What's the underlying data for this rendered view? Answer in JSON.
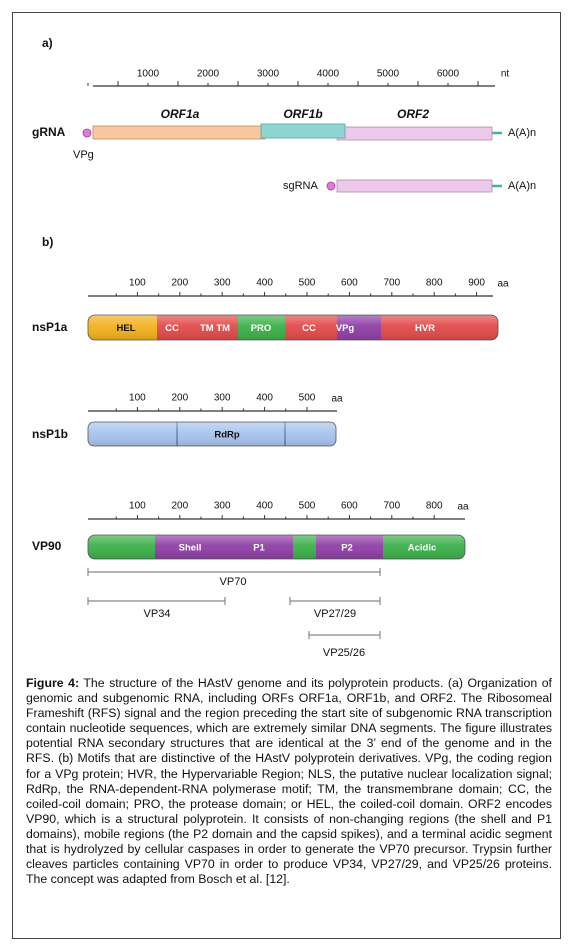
{
  "panel_a": {
    "label": "a)",
    "ruler_ticks": [
      "1000",
      "2000",
      "3000",
      "4000",
      "5000",
      "6000"
    ],
    "ruler_unit": "nt",
    "orf_labels": [
      "ORF1a",
      "ORF1b",
      "ORF2"
    ],
    "grna": {
      "label": "gRNA",
      "vpg": "VPg",
      "tail": "A(A)n"
    },
    "sgrna": {
      "label": "sgRNA",
      "tail": "A(A)n"
    }
  },
  "panel_b": {
    "label": "b)",
    "proteins": [
      {
        "name": "nsP1a",
        "ruler_ticks": [
          "100",
          "200",
          "300",
          "400",
          "500",
          "600",
          "700",
          "800",
          "900"
        ],
        "ruler_unit": "aa",
        "domains": [
          "HEL",
          "CC",
          "TM TM",
          "PRO",
          "CC",
          "VPg",
          "HVR"
        ]
      },
      {
        "name": "nsP1b",
        "ruler_ticks": [
          "100",
          "200",
          "300",
          "400",
          "500"
        ],
        "ruler_unit": "aa",
        "domains": [
          "RdRp"
        ]
      },
      {
        "name": "VP90",
        "ruler_ticks": [
          "100",
          "200",
          "300",
          "400",
          "500",
          "600",
          "700",
          "800"
        ],
        "ruler_unit": "aa",
        "domains": [
          "Shell",
          "P1",
          "P2",
          "Acidic"
        ]
      }
    ],
    "cleavage_products": [
      "VP70",
      "VP34",
      "VP27/29",
      "VP25/26"
    ]
  },
  "caption": {
    "label": "Figure 4:",
    "text": "The structure of the HAstV genome and its polyprotein products. (a) Organization of genomic and subgenomic RNA, including ORFs ORF1a, ORF1b, and ORF2. The Ribosomeal Frameshift (RFS) signal and the region preceding the start site of subgenomic RNA transcription contain nucleotide sequences, which are extremely similar DNA segments. The figure illustrates potential RNA secondary structures that are identical at the 3’ end of the genome and in the RFS. (b) Motifs that are distinctive of the HAstV polyprotein derivatives. VPg, the coding region for a VPg protein; HVR, the Hypervariable Region; NLS, the putative nuclear localization signal; RdRp, the RNA-dependent-RNA polymerase motif; TM, the transmembrane domain; CC, the coiled-coil domain; PRO, the protease domain; or HEL, the coiled-coil domain. ORF2 encodes VP90, which is a structural polyprotein. It consists of non-changing regions (the shell and P1 domains), mobile regions (the P2 domain and the capsid spikes), and a terminal acidic segment that is hydrolyzed by cellular caspases in order to generate the VP70 precursor. Trypsin further cleaves particles containing VP70 in order to produce VP34, VP27/29, and VP25/26 proteins. The concept was adapted from Bosch et al. [12]."
  }
}
